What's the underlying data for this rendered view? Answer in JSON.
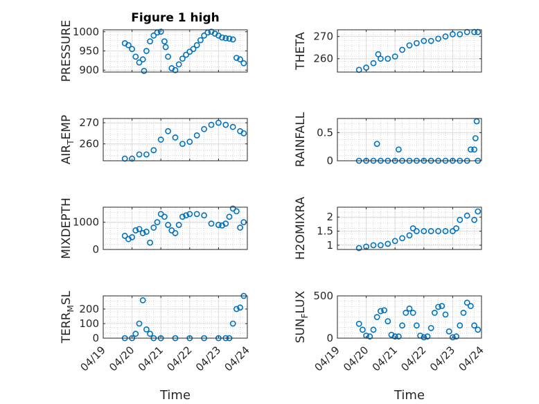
{
  "figure_title": "Figure 1 high",
  "colors": {
    "series": "#0072BD",
    "axis": "#262626"
  },
  "chart_data": [
    {
      "type": "scatter",
      "title": "Figure 1 high",
      "ylabel": "PRESSURE",
      "ylabel_sub": "",
      "xlim": [
        "04/19",
        "04/24"
      ],
      "ylim": [
        895,
        1005
      ],
      "yticks": [
        900,
        950,
        1000
      ],
      "grid": true,
      "marker": "circle",
      "x": [
        "04/19 18:00",
        "04/19 21:00",
        "04/20 00:00",
        "04/20 03:00",
        "04/20 06:00",
        "04/20 09:00",
        "04/20 10:00",
        "04/20 12:00",
        "04/20 15:00",
        "04/20 18:00",
        "04/20 21:00",
        "04/21 00:00",
        "04/21 03:00",
        "04/21 04:00",
        "04/21 06:00",
        "04/21 09:00",
        "04/21 12:00",
        "04/21 15:00",
        "04/21 18:00",
        "04/21 21:00",
        "04/22 00:00",
        "04/22 03:00",
        "04/22 06:00",
        "04/22 09:00",
        "04/22 12:00",
        "04/22 15:00",
        "04/22 18:00",
        "04/22 21:00",
        "04/23 00:00",
        "04/23 03:00",
        "04/23 06:00",
        "04/23 09:00",
        "04/23 12:00",
        "04/23 15:00",
        "04/23 18:00",
        "04/23 21:00"
      ],
      "y": [
        970,
        965,
        955,
        935,
        920,
        928,
        898,
        950,
        975,
        990,
        998,
        1000,
        975,
        960,
        935,
        905,
        900,
        915,
        930,
        940,
        948,
        955,
        965,
        978,
        990,
        998,
        1000,
        995,
        990,
        985,
        983,
        982,
        980,
        932,
        928,
        918
      ]
    },
    {
      "type": "scatter",
      "title": "",
      "ylabel": "THETA",
      "ylabel_sub": "",
      "xlim": [
        "04/19",
        "04/24"
      ],
      "ylim": [
        254,
        273
      ],
      "yticks": [
        260,
        270
      ],
      "grid": true,
      "marker": "circle",
      "x": [
        "04/19 18:00",
        "04/20 00:00",
        "04/20 06:00",
        "04/20 10:00",
        "04/20 12:00",
        "04/20 18:00",
        "04/21 00:00",
        "04/21 06:00",
        "04/21 12:00",
        "04/21 18:00",
        "04/22 00:00",
        "04/22 06:00",
        "04/22 12:00",
        "04/22 18:00",
        "04/23 00:00",
        "04/23 06:00",
        "04/23 12:00",
        "04/23 18:00",
        "04/23 21:00"
      ],
      "y": [
        255,
        256,
        258,
        262,
        260,
        260,
        261,
        264,
        266,
        267,
        268,
        268,
        269,
        270,
        271,
        271,
        272,
        272,
        272
      ]
    },
    {
      "type": "scatter",
      "title": "",
      "ylabel": "AIR",
      "ylabel_sub": "T",
      "ylabel_suffix": "EMP",
      "xlim": [
        "04/19",
        "04/24"
      ],
      "ylim": [
        252,
        272
      ],
      "yticks": [
        260,
        270
      ],
      "grid": true,
      "marker": "circle",
      "x": [
        "04/19 18:00",
        "04/20 00:00",
        "04/20 06:00",
        "04/20 12:00",
        "04/20 18:00",
        "04/21 00:00",
        "04/21 06:00",
        "04/21 12:00",
        "04/21 18:00",
        "04/22 00:00",
        "04/22 06:00",
        "04/22 12:00",
        "04/22 18:00",
        "04/23 00:00",
        "04/23 06:00",
        "04/23 12:00",
        "04/23 18:00",
        "04/23 21:00"
      ],
      "y": [
        253,
        253,
        255,
        255,
        257,
        262,
        266,
        263,
        260,
        261,
        264,
        267,
        269,
        270,
        269,
        268,
        266,
        265
      ]
    },
    {
      "type": "scatter",
      "title": "",
      "ylabel": "RAINFALL",
      "ylabel_sub": "",
      "xlim": [
        "04/19",
        "04/24"
      ],
      "ylim": [
        0,
        0.75
      ],
      "yticks": [
        0,
        0.5
      ],
      "grid": true,
      "marker": "circle",
      "x": [
        "04/19 18:00",
        "04/20 00:00",
        "04/20 06:00",
        "04/20 09:00",
        "04/20 12:00",
        "04/20 18:00",
        "04/21 00:00",
        "04/21 03:00",
        "04/21 06:00",
        "04/21 12:00",
        "04/21 18:00",
        "04/22 00:00",
        "04/22 06:00",
        "04/22 12:00",
        "04/22 18:00",
        "04/23 00:00",
        "04/23 06:00",
        "04/23 12:00",
        "04/23 15:00",
        "04/23 18:00",
        "04/23 19:00",
        "04/23 20:00",
        "04/23 21:00"
      ],
      "y": [
        0,
        0,
        0,
        0.3,
        0,
        0,
        0,
        0.2,
        0,
        0,
        0,
        0,
        0,
        0,
        0,
        0,
        0,
        0,
        0.2,
        0.2,
        0.4,
        0.7,
        0
      ]
    },
    {
      "type": "scatter",
      "title": "",
      "ylabel": "MIXDEPTH",
      "ylabel_sub": "",
      "xlim": [
        "04/19",
        "04/24"
      ],
      "ylim": [
        0,
        1550
      ],
      "yticks": [
        0,
        1000
      ],
      "grid": true,
      "marker": "circle",
      "x": [
        "04/19 18:00",
        "04/19 21:00",
        "04/20 00:00",
        "04/20 03:00",
        "04/20 06:00",
        "04/20 09:00",
        "04/20 12:00",
        "04/20 15:00",
        "04/20 18:00",
        "04/20 21:00",
        "04/21 00:00",
        "04/21 03:00",
        "04/21 06:00",
        "04/21 09:00",
        "04/21 12:00",
        "04/21 15:00",
        "04/21 18:00",
        "04/21 21:00",
        "04/22 00:00",
        "04/22 06:00",
        "04/22 12:00",
        "04/22 18:00",
        "04/23 00:00",
        "04/23 03:00",
        "04/23 06:00",
        "04/23 09:00",
        "04/23 12:00",
        "04/23 15:00",
        "04/23 18:00",
        "04/23 21:00"
      ],
      "y": [
        500,
        380,
        450,
        700,
        750,
        600,
        650,
        250,
        800,
        1000,
        1300,
        1200,
        900,
        700,
        600,
        900,
        1200,
        1250,
        1300,
        1300,
        1250,
        950,
        900,
        880,
        950,
        1200,
        1500,
        1400,
        800,
        1000
      ]
    },
    {
      "type": "scatter",
      "title": "",
      "ylabel": "H2OMIXRA",
      "ylabel_sub": "",
      "xlim": [
        "04/19",
        "04/24"
      ],
      "ylim": [
        0.85,
        2.35
      ],
      "yticks": [
        1,
        1.5,
        2
      ],
      "grid": true,
      "marker": "circle",
      "x": [
        "04/19 18:00",
        "04/20 00:00",
        "04/20 06:00",
        "04/20 12:00",
        "04/20 18:00",
        "04/21 00:00",
        "04/21 06:00",
        "04/21 12:00",
        "04/21 15:00",
        "04/21 18:00",
        "04/22 00:00",
        "04/22 06:00",
        "04/22 12:00",
        "04/22 18:00",
        "04/23 00:00",
        "04/23 03:00",
        "04/23 06:00",
        "04/23 12:00",
        "04/23 18:00",
        "04/23 21:00"
      ],
      "y": [
        0.9,
        0.95,
        1.0,
        1.0,
        1.05,
        1.15,
        1.25,
        1.35,
        1.6,
        1.5,
        1.5,
        1.5,
        1.5,
        1.5,
        1.5,
        1.6,
        1.9,
        2.05,
        1.9,
        2.2
      ]
    },
    {
      "type": "scatter",
      "title": "",
      "ylabel": "TERR",
      "ylabel_sub": "M",
      "ylabel_suffix": "SL",
      "xlim": [
        "04/19",
        "04/24"
      ],
      "ylim": [
        0,
        290
      ],
      "yticks": [
        0,
        100,
        200
      ],
      "grid": true,
      "marker": "circle",
      "x": [
        "04/19 18:00",
        "04/20 00:00",
        "04/20 03:00",
        "04/20 06:00",
        "04/20 09:00",
        "04/20 12:00",
        "04/20 15:00",
        "04/20 18:00",
        "04/21 00:00",
        "04/21 12:00",
        "04/22 00:00",
        "04/22 12:00",
        "04/23 00:00",
        "04/23 06:00",
        "04/23 09:00",
        "04/23 12:00",
        "04/23 15:00",
        "04/23 18:00",
        "04/23 21:00"
      ],
      "y": [
        0,
        0,
        30,
        100,
        260,
        60,
        30,
        0,
        0,
        0,
        0,
        0,
        0,
        0,
        0,
        100,
        200,
        210,
        290
      ]
    },
    {
      "type": "scatter",
      "title": "",
      "ylabel": "SUN",
      "ylabel_sub": "F",
      "ylabel_suffix": "LUX",
      "xlim": [
        "04/19",
        "04/24"
      ],
      "ylim": [
        0,
        500
      ],
      "yticks": [
        0,
        500
      ],
      "grid": true,
      "marker": "circle",
      "x": [
        "04/19 18:00",
        "04/19 21:00",
        "04/20 00:00",
        "04/20 03:00",
        "04/20 06:00",
        "04/20 09:00",
        "04/20 12:00",
        "04/20 15:00",
        "04/20 18:00",
        "04/20 21:00",
        "04/21 00:00",
        "04/21 03:00",
        "04/21 06:00",
        "04/21 09:00",
        "04/21 12:00",
        "04/21 15:00",
        "04/21 18:00",
        "04/21 21:00",
        "04/22 00:00",
        "04/22 03:00",
        "04/22 06:00",
        "04/22 09:00",
        "04/22 12:00",
        "04/22 15:00",
        "04/22 18:00",
        "04/22 21:00",
        "04/23 00:00",
        "04/23 03:00",
        "04/23 06:00",
        "04/23 09:00",
        "04/23 12:00",
        "04/23 15:00",
        "04/23 18:00",
        "04/23 21:00"
      ],
      "y": [
        170,
        100,
        30,
        20,
        100,
        250,
        320,
        330,
        200,
        40,
        20,
        20,
        150,
        300,
        350,
        300,
        150,
        30,
        10,
        20,
        120,
        300,
        370,
        380,
        280,
        80,
        10,
        20,
        150,
        300,
        420,
        380,
        150,
        100
      ]
    }
  ],
  "xticks": [
    "04/19",
    "04/20",
    "04/21",
    "04/22",
    "04/23",
    "04/24"
  ],
  "xlabel": "Time"
}
